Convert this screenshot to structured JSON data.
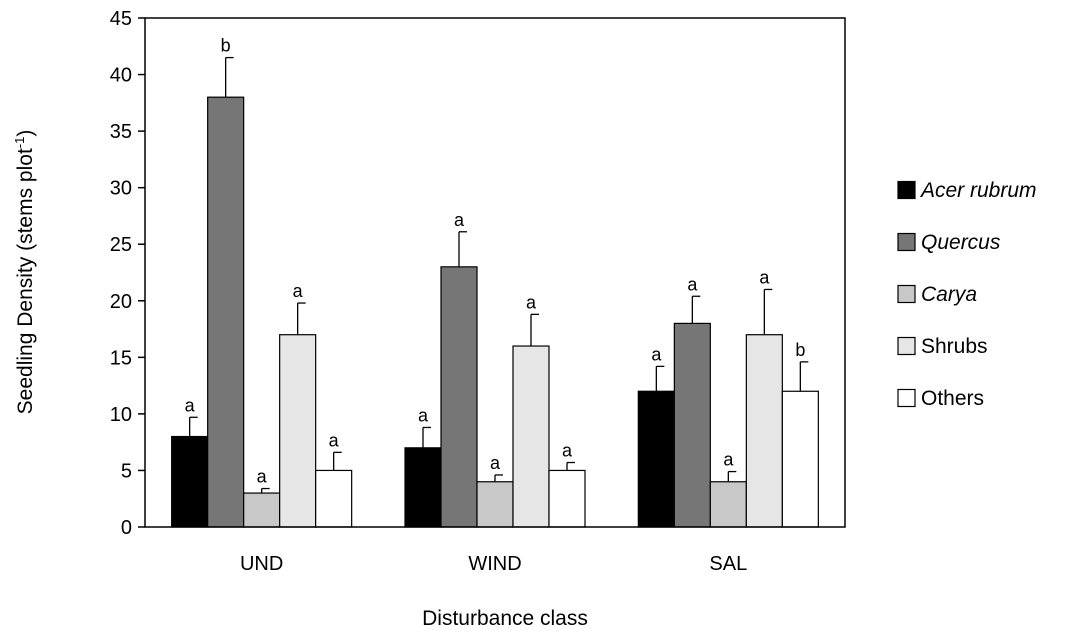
{
  "chart_data": {
    "type": "bar",
    "categories": [
      "UND",
      "WIND",
      "SAL"
    ],
    "xlabel": "Disturbance class",
    "ylabel": "Seedling Density (stems plot",
    "ylabel_superscript": "-1",
    "ylabel_suffix": ")",
    "ylim": [
      0,
      45
    ],
    "yticks": [
      0,
      5,
      10,
      15,
      20,
      25,
      30,
      35,
      40,
      45
    ],
    "grid": false,
    "legend_position": "right",
    "series": [
      {
        "name": "Acer rubrum",
        "italic": true,
        "color": "#000000",
        "values": [
          8,
          7,
          12
        ],
        "errors": [
          1.7,
          1.8,
          2.2
        ],
        "letters": [
          "a",
          "a",
          "a"
        ]
      },
      {
        "name": "Quercus",
        "italic": true,
        "color": "#767676",
        "values": [
          38,
          23,
          18
        ],
        "errors": [
          3.5,
          3.1,
          2.4
        ],
        "letters": [
          "b",
          "a",
          "a"
        ]
      },
      {
        "name": "Carya",
        "italic": true,
        "color": "#c8c8c8",
        "values": [
          3,
          4,
          4
        ],
        "errors": [
          0.4,
          0.6,
          0.9
        ],
        "letters": [
          "a",
          "a",
          "a"
        ]
      },
      {
        "name": "Shrubs",
        "italic": false,
        "color": "#e6e6e6",
        "values": [
          17,
          16,
          17
        ],
        "errors": [
          2.8,
          2.8,
          4.0
        ],
        "letters": [
          "a",
          "a",
          "a"
        ]
      },
      {
        "name": "Others",
        "italic": false,
        "color": "#ffffff",
        "values": [
          5,
          5,
          12
        ],
        "errors": [
          1.6,
          0.7,
          2.6
        ],
        "letters": [
          "a",
          "a",
          "b"
        ]
      }
    ]
  }
}
